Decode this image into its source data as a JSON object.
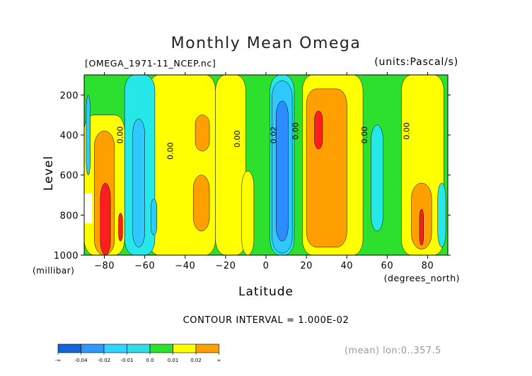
{
  "chart_data": {
    "type": "heatmap",
    "title": "Monthly Mean Omega",
    "subtitle_left": "[OMEGA_1971-11_NCEP.nc]",
    "subtitle_right": "(units:Pascal/s)",
    "xlabel": "Latitude",
    "xunit": "(degrees_north)",
    "ylabel": "Level",
    "yunit": "(millibar)",
    "xlim": [
      -90,
      90
    ],
    "ylim": [
      1000,
      100
    ],
    "x_ticks": [
      -80,
      -60,
      -40,
      -20,
      0,
      20,
      40,
      60,
      80
    ],
    "y_ticks": [
      200,
      400,
      600,
      800,
      1000
    ],
    "contour_interval": "CONTOUR INTERVAL = 1.000E-02",
    "contour_labels": [
      {
        "text": "0.00",
        "lat": -71,
        "level": 400
      },
      {
        "text": "0.00",
        "lat": -46,
        "level": 480
      },
      {
        "text": "0.00",
        "lat": -13,
        "level": 420
      },
      {
        "text": "0.02",
        "lat": 5,
        "level": 400
      },
      {
        "text": "0.00",
        "lat": 16,
        "level": 380
      },
      {
        "text": "0.00",
        "lat": 50,
        "level": 400
      },
      {
        "text": "0.00",
        "lat": 71,
        "level": 380
      }
    ],
    "regions": [
      {
        "value_class": "0.0..0.01",
        "lat": [
          -25,
          -10
        ],
        "level": [
          100,
          1000
        ]
      },
      {
        "value_class": "0.0..0.01",
        "lat": [
          -58,
          -25
        ],
        "level": [
          100,
          1000
        ]
      },
      {
        "value_class": "0.01..0.02",
        "lat": [
          -35,
          -28
        ],
        "level": [
          300,
          480
        ]
      },
      {
        "value_class": "0.01..0.02",
        "lat": [
          -36,
          -28
        ],
        "level": [
          600,
          880
        ]
      },
      {
        "value_class": "-0.01..0.0",
        "lat": [
          -70,
          -55
        ],
        "level": [
          100,
          1000
        ]
      },
      {
        "value_class": "-0.02..-0.01",
        "lat": [
          -66,
          -60
        ],
        "level": [
          320,
          960
        ]
      },
      {
        "value_class": "-0.02..-0.01",
        "lat": [
          -57,
          -54
        ],
        "level": [
          720,
          900
        ]
      },
      {
        "value_class": "0.0..0.01",
        "lat": [
          -90,
          -70
        ],
        "level": [
          300,
          1000
        ]
      },
      {
        "value_class": "0.01..0.02",
        "lat": [
          -85,
          -75
        ],
        "level": [
          380,
          1000
        ]
      },
      {
        "value_class": "0.02..",
        "lat": [
          -82,
          -77
        ],
        "level": [
          640,
          1000
        ]
      },
      {
        "value_class": "0.02..",
        "lat": [
          -73,
          -71
        ],
        "level": [
          790,
          930
        ]
      },
      {
        "value_class": "-0.02..-0.01",
        "lat": [
          -89,
          -87
        ],
        "level": [
          200,
          600
        ]
      },
      {
        "value_class": "-0.01..0.0",
        "lat": [
          2,
          14
        ],
        "level": [
          100,
          1000
        ]
      },
      {
        "value_class": "-0.02..-0.01",
        "lat": [
          3,
          13
        ],
        "level": [
          130,
          990
        ]
      },
      {
        "value_class": "-0.04..-0.02",
        "lat": [
          5,
          11
        ],
        "level": [
          230,
          930
        ]
      },
      {
        "value_class": "0.0..0.01",
        "lat": [
          18,
          48
        ],
        "level": [
          100,
          1000
        ]
      },
      {
        "value_class": "0.01..0.02",
        "lat": [
          20,
          40
        ],
        "level": [
          170,
          960
        ]
      },
      {
        "value_class": "0.02..",
        "lat": [
          24,
          28
        ],
        "level": [
          280,
          470
        ]
      },
      {
        "value_class": "0.0..0.01",
        "lat": [
          -12,
          -6
        ],
        "level": [
          580,
          1000
        ]
      },
      {
        "value_class": "-0.01..0.0",
        "lat": [
          52,
          58
        ],
        "level": [
          350,
          880
        ]
      },
      {
        "value_class": "0.0..0.01",
        "lat": [
          67,
          88
        ],
        "level": [
          100,
          1000
        ]
      },
      {
        "value_class": "0.01..0.02",
        "lat": [
          72,
          82
        ],
        "level": [
          640,
          970
        ]
      },
      {
        "value_class": "0.02..",
        "lat": [
          76,
          78
        ],
        "level": [
          770,
          950
        ]
      },
      {
        "value_class": "-0.01..0.0",
        "lat": [
          85,
          89
        ],
        "level": [
          640,
          960
        ]
      },
      {
        "value_class": "missing",
        "lat": [
          -90,
          -86
        ],
        "level": [
          690,
          840
        ]
      }
    ]
  },
  "colorbar": {
    "labels": [
      "-∞",
      "-0.04",
      "-0.02",
      "-0.01",
      "0.0",
      "0.01",
      "0.02",
      "∞"
    ],
    "colors": [
      "#1565d8",
      "#2f97ff",
      "#2fd4ff",
      "#31dbe8",
      "#2ee02e",
      "#ffff00",
      "#ffa000",
      "#ff1e1e"
    ],
    "classes": [
      "-0.04",
      "-0.04..-0.02",
      "-0.02..-0.01",
      "-0.01..0.0",
      "0.0..0.01",
      "0.01..0.02",
      "0.02..",
      "0.02.."
    ]
  },
  "palette": {
    "0.0..0.01": "#ffff00",
    "0.01..0.02": "#ffa000",
    "0.02..": "#ff1e1e",
    "-0.01..0.0": "#27e8e8",
    "-0.02..-0.01": "#2fc8ff",
    "-0.04..-0.02": "#2d8cff",
    "background": "#2ee02e",
    "missing": "#ffffff"
  },
  "footer": {
    "mean_note": "(mean) lon:0..357.5"
  }
}
